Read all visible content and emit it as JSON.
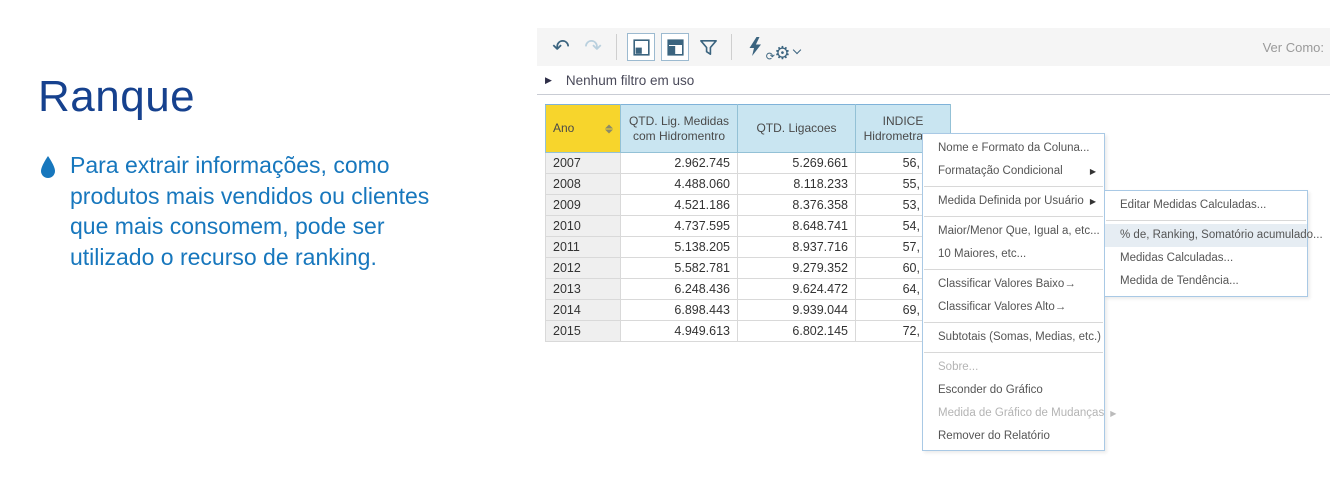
{
  "slide": {
    "title": "Ranque",
    "bullet_text": "Para extrair informações, como\nprodutos mais vendidos ou clientes\nque mais consomem, pode ser\nutilizado o recurso de ranking."
  },
  "app": {
    "toolbar": {
      "view_as_label": "Ver Como:",
      "icons": [
        "undo-icon",
        "redo-icon",
        "panel-restore-icon",
        "panel-layout-icon",
        "filter-icon",
        "refresh-bolt-icon",
        "gear-icon"
      ]
    },
    "filter_bar": {
      "label": "Nenhum filtro em uso"
    },
    "table": {
      "columns": [
        "Ano",
        "QTD. Lig. Medidas\ncom Hidromentro",
        "QTD. Ligacoes",
        "INDICE\nHidrometraçao"
      ],
      "rows": [
        [
          "2007",
          "2.962.745",
          "5.269.661",
          "56,"
        ],
        [
          "2008",
          "4.488.060",
          "8.118.233",
          "55,"
        ],
        [
          "2009",
          "4.521.186",
          "8.376.358",
          "53,"
        ],
        [
          "2010",
          "4.737.595",
          "8.648.741",
          "54,"
        ],
        [
          "2011",
          "5.138.205",
          "8.937.716",
          "57,"
        ],
        [
          "2012",
          "5.582.781",
          "9.279.352",
          "60,"
        ],
        [
          "2013",
          "6.248.436",
          "9.624.472",
          "64,"
        ],
        [
          "2014",
          "6.898.443",
          "9.939.044",
          "69,"
        ],
        [
          "2015",
          "4.949.613",
          "6.802.145",
          "72,"
        ]
      ]
    },
    "context_menu": {
      "items": [
        {
          "label": "Nome e Formato da Coluna...",
          "enabled": true,
          "submenu": false,
          "sep_after": false
        },
        {
          "label": "Formatação Condicional",
          "enabled": true,
          "submenu": true,
          "sep_after": true
        },
        {
          "label": "Medida Definida por Usuário",
          "enabled": true,
          "submenu": true,
          "sep_after": true
        },
        {
          "label": "Maior/Menor Que, Igual a, etc...",
          "enabled": true,
          "submenu": false,
          "sep_after": false
        },
        {
          "label": "10 Maiores, etc...",
          "enabled": true,
          "submenu": false,
          "sep_after": true
        },
        {
          "label": "Classificar Valores Baixo→",
          "enabled": true,
          "submenu": false,
          "sep_after": false
        },
        {
          "label": "Classificar Valores Alto→",
          "enabled": true,
          "submenu": false,
          "sep_after": true
        },
        {
          "label": "Subtotais (Somas, Medias, etc.)",
          "enabled": true,
          "submenu": false,
          "sep_after": true
        },
        {
          "label": "Sobre...",
          "enabled": false,
          "submenu": false,
          "sep_after": false
        },
        {
          "label": "Esconder do Gráfico",
          "enabled": true,
          "submenu": false,
          "sep_after": false
        },
        {
          "label": "Medida de Gráfico de Mudanças",
          "enabled": false,
          "submenu": true,
          "sep_after": false
        },
        {
          "label": "Remover do Relatório",
          "enabled": true,
          "submenu": false,
          "sep_after": false
        }
      ]
    },
    "submenu": {
      "items": [
        {
          "label": "Editar Medidas Calculadas...",
          "highlighted": false,
          "sep_after": true
        },
        {
          "label": "% de, Ranking, Somatório acumulado...",
          "highlighted": true,
          "sep_after": false
        },
        {
          "label": "Medidas Calculadas...",
          "highlighted": false,
          "sep_after": false
        },
        {
          "label": "Medida de Tendência...",
          "highlighted": false,
          "sep_after": false
        }
      ]
    },
    "colors": {
      "title_blue": "#16418E",
      "body_blue": "#1777BD",
      "icon_blue": "#3B647F",
      "header_blue": "#C9E5F1",
      "header_yellow": "#F7D52C",
      "menu_border": "#A9C9E5",
      "submenu_highlight": "#E6EDF3"
    }
  }
}
